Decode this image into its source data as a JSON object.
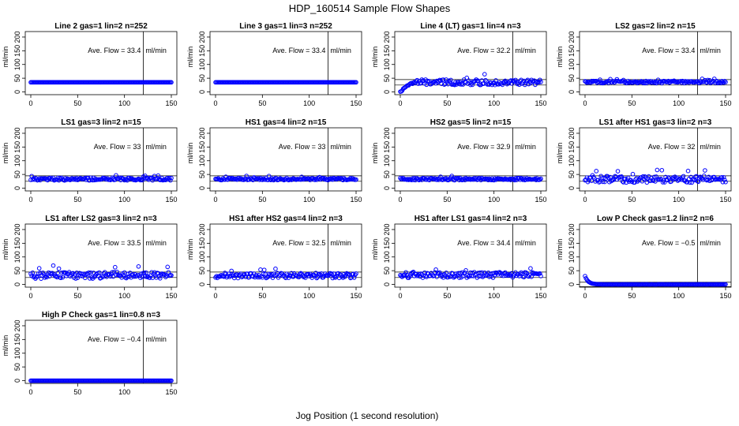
{
  "figure": {
    "title": "HDP_160514  Sample Flow Shapes",
    "xlabel": "Jog Position (1 second resolution)"
  },
  "colors": {
    "points": "#0000ff",
    "axes": "#000000"
  },
  "chart_data": [
    {
      "type": "scatter",
      "title": "Line 2 gas=1 lin=2 n=252",
      "ylabel": "ml/min",
      "xlim": [
        0,
        150
      ],
      "ylim": [
        -10,
        220
      ],
      "xticks": [
        0,
        50,
        100,
        150
      ],
      "yticks": [
        0,
        50,
        100,
        150,
        200
      ],
      "vline_x": 120,
      "hlines": [],
      "mean": 35,
      "jitter": 0,
      "decay": 0,
      "annotation": {
        "prefix": "Ave. Flow = ",
        "value": "33.4",
        "unit": "ml/min"
      }
    },
    {
      "type": "scatter",
      "title": "Line 3 gas=1 lin=3 n=252",
      "ylabel": "ml/min",
      "xlim": [
        0,
        150
      ],
      "ylim": [
        -10,
        220
      ],
      "xticks": [
        0,
        50,
        100,
        150
      ],
      "yticks": [
        0,
        50,
        100,
        150,
        200
      ],
      "vline_x": 120,
      "hlines": [],
      "mean": 35,
      "jitter": 0,
      "decay": 0,
      "annotation": {
        "prefix": "Ave. Flow = ",
        "value": "33.4",
        "unit": "ml/min"
      }
    },
    {
      "type": "scatter",
      "title": "Line 4 (LT) gas=1 lin=4 n=3",
      "ylabel": "ml/min",
      "xlim": [
        0,
        150
      ],
      "ylim": [
        -10,
        220
      ],
      "xticks": [
        0,
        50,
        100,
        150
      ],
      "yticks": [
        0,
        50,
        100,
        150,
        200
      ],
      "vline_x": 120,
      "hlines": [
        25,
        45
      ],
      "mean": 35,
      "jitter": 10,
      "decay": 0,
      "rise": true,
      "annotation": {
        "prefix": "Ave. Flow = ",
        "value": "32.2",
        "unit": "ml/min"
      }
    },
    {
      "type": "scatter",
      "title": "LS2 gas=2 lin=2 n=15",
      "ylabel": "ml/min",
      "xlim": [
        0,
        150
      ],
      "ylim": [
        -10,
        220
      ],
      "xticks": [
        0,
        50,
        100,
        150
      ],
      "yticks": [
        0,
        50,
        100,
        150,
        200
      ],
      "vline_x": 120,
      "hlines": [
        25,
        45
      ],
      "mean": 36,
      "jitter": 4,
      "decay": 0,
      "annotation": {
        "prefix": "Ave. Flow = ",
        "value": "33.4",
        "unit": "ml/min"
      }
    },
    {
      "type": "scatter",
      "title": "LS1 gas=3 lin=2 n=15",
      "ylabel": "ml/min",
      "xlim": [
        0,
        150
      ],
      "ylim": [
        -10,
        220
      ],
      "xticks": [
        0,
        50,
        100,
        150
      ],
      "yticks": [
        0,
        50,
        100,
        150,
        200
      ],
      "vline_x": 120,
      "hlines": [
        25,
        45
      ],
      "mean": 33,
      "jitter": 5,
      "decay": 0,
      "annotation": {
        "prefix": "Ave. Flow = ",
        "value": "33",
        "unit": "ml/min"
      }
    },
    {
      "type": "scatter",
      "title": "HS1 gas=4 lin=2 n=15",
      "ylabel": "ml/min",
      "xlim": [
        0,
        150
      ],
      "ylim": [
        -10,
        220
      ],
      "xticks": [
        0,
        50,
        100,
        150
      ],
      "yticks": [
        0,
        50,
        100,
        150,
        200
      ],
      "vline_x": 120,
      "hlines": [
        25,
        45
      ],
      "mean": 33,
      "jitter": 4,
      "decay": 0,
      "annotation": {
        "prefix": "Ave. Flow = ",
        "value": "33",
        "unit": "ml/min"
      }
    },
    {
      "type": "scatter",
      "title": "HS2 gas=5 lin=2 n=15",
      "ylabel": "ml/min",
      "xlim": [
        0,
        150
      ],
      "ylim": [
        -10,
        220
      ],
      "xticks": [
        0,
        50,
        100,
        150
      ],
      "yticks": [
        0,
        50,
        100,
        150,
        200
      ],
      "vline_x": 120,
      "hlines": [
        25,
        45
      ],
      "mean": 33,
      "jitter": 4,
      "decay": 0,
      "annotation": {
        "prefix": "Ave. Flow = ",
        "value": "32.9",
        "unit": "ml/min"
      }
    },
    {
      "type": "scatter",
      "title": "LS1 after HS1 gas=3 lin=2 n=3",
      "ylabel": "ml/min",
      "xlim": [
        0,
        150
      ],
      "ylim": [
        -10,
        220
      ],
      "xticks": [
        0,
        50,
        100,
        150
      ],
      "yticks": [
        0,
        50,
        100,
        150,
        200
      ],
      "vline_x": 120,
      "hlines": [
        25,
        45
      ],
      "mean": 32,
      "jitter": 12,
      "decay": 0,
      "annotation": {
        "prefix": "Ave. Flow = ",
        "value": "32",
        "unit": "ml/min"
      }
    },
    {
      "type": "scatter",
      "title": "LS1 after LS2 gas=3 lin=2 n=3",
      "ylabel": "ml/min",
      "xlim": [
        0,
        150
      ],
      "ylim": [
        -10,
        220
      ],
      "xticks": [
        0,
        50,
        100,
        150
      ],
      "yticks": [
        0,
        50,
        100,
        150,
        200
      ],
      "vline_x": 120,
      "hlines": [
        25,
        45
      ],
      "mean": 33,
      "jitter": 12,
      "decay": 0,
      "annotation": {
        "prefix": "Ave. Flow = ",
        "value": "33.5",
        "unit": "ml/min"
      }
    },
    {
      "type": "scatter",
      "title": "HS1 after HS2 gas=4 lin=2 n=3",
      "ylabel": "ml/min",
      "xlim": [
        0,
        150
      ],
      "ylim": [
        -10,
        220
      ],
      "xticks": [
        0,
        50,
        100,
        150
      ],
      "yticks": [
        0,
        50,
        100,
        150,
        200
      ],
      "vline_x": 120,
      "hlines": [
        25,
        45
      ],
      "mean": 32,
      "jitter": 9,
      "decay": 0,
      "annotation": {
        "prefix": "Ave. Flow = ",
        "value": "32.5",
        "unit": "ml/min"
      }
    },
    {
      "type": "scatter",
      "title": "HS1 after LS1 gas=4 lin=2 n=3",
      "ylabel": "ml/min",
      "xlim": [
        0,
        150
      ],
      "ylim": [
        -10,
        220
      ],
      "xticks": [
        0,
        50,
        100,
        150
      ],
      "yticks": [
        0,
        50,
        100,
        150,
        200
      ],
      "vline_x": 120,
      "hlines": [
        25,
        45
      ],
      "mean": 34,
      "jitter": 10,
      "decay": 0,
      "annotation": {
        "prefix": "Ave. Flow = ",
        "value": "34.4",
        "unit": "ml/min"
      }
    },
    {
      "type": "scatter",
      "title": "Low P Check gas=1.2 lin=2 n=6",
      "ylabel": "ml/min",
      "xlim": [
        0,
        150
      ],
      "ylim": [
        -10,
        220
      ],
      "xticks": [
        0,
        50,
        100,
        150
      ],
      "yticks": [
        0,
        50,
        100,
        150,
        200
      ],
      "vline_x": 120,
      "hlines": [
        -8,
        8
      ],
      "mean": 0,
      "jitter": 0,
      "decay": 30,
      "annotation": {
        "prefix": "Ave. Flow = ",
        "value": "−0.5",
        "unit": "ml/min"
      }
    },
    {
      "type": "scatter",
      "title": "High P Check gas=1 lin=0.8 n=3",
      "ylabel": "ml/min",
      "xlim": [
        0,
        150
      ],
      "ylim": [
        -10,
        220
      ],
      "xticks": [
        0,
        50,
        100,
        150
      ],
      "yticks": [
        0,
        50,
        100,
        150,
        200
      ],
      "vline_x": 120,
      "hlines": [],
      "mean": 0,
      "jitter": 0,
      "decay": 0,
      "annotation": {
        "prefix": "Ave. Flow = ",
        "value": "−0.4",
        "unit": "ml/min"
      }
    }
  ]
}
